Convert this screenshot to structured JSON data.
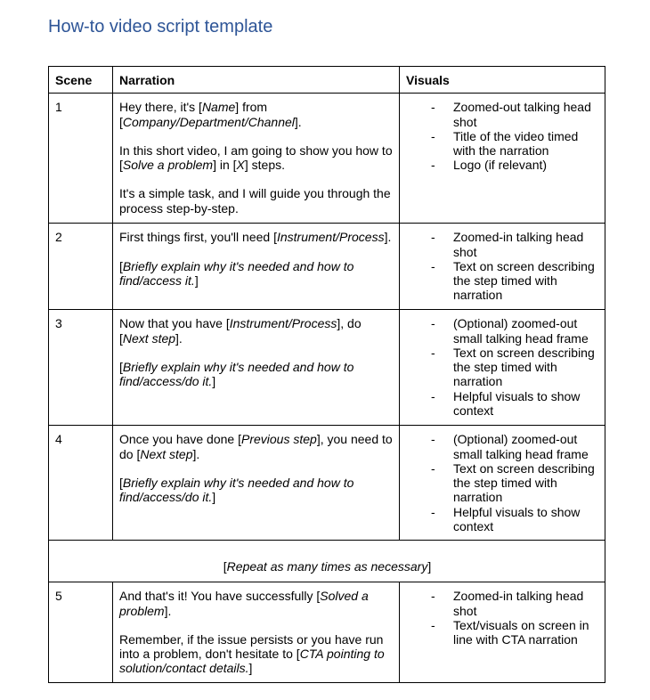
{
  "title": "How-to video script template",
  "headers": {
    "scene": "Scene",
    "narration": "Narration",
    "visuals": "Visuals"
  },
  "rows": [
    {
      "scene": "1",
      "narration": [
        [
          {
            "t": "Hey there, it's ["
          },
          {
            "t": "Name",
            "i": true
          },
          {
            "t": "] from ["
          },
          {
            "t": "Company/Department/Channel",
            "i": true
          },
          {
            "t": "]."
          }
        ],
        [
          {
            "t": "In this short video, I am going to show you how to ["
          },
          {
            "t": "Solve a problem",
            "i": true
          },
          {
            "t": "] in ["
          },
          {
            "t": "X",
            "i": true
          },
          {
            "t": "] steps."
          }
        ],
        [
          {
            "t": "It's a simple task, and I will guide you through the process step-by-step."
          }
        ]
      ],
      "visuals": [
        "Zoomed-out talking head shot",
        "Title of the video timed with the narration",
        "Logo (if relevant)"
      ]
    },
    {
      "scene": "2",
      "narration": [
        [
          {
            "t": "First things first, you'll need ["
          },
          {
            "t": "Instrument/Process",
            "i": true
          },
          {
            "t": "]."
          }
        ],
        [
          {
            "t": "["
          },
          {
            "t": "Briefly explain why it's needed and how to find/access it.",
            "i": true
          },
          {
            "t": "]"
          }
        ]
      ],
      "visuals": [
        "Zoomed-in talking head shot",
        "Text on screen describing the step timed with narration"
      ]
    },
    {
      "scene": "3",
      "narration": [
        [
          {
            "t": "Now that you have ["
          },
          {
            "t": "Instrument/Process",
            "i": true
          },
          {
            "t": "], do ["
          },
          {
            "t": "Next step",
            "i": true
          },
          {
            "t": "]."
          }
        ],
        [
          {
            "t": "["
          },
          {
            "t": "Briefly explain why it's needed and how to find/access/do it.",
            "i": true
          },
          {
            "t": "]"
          }
        ]
      ],
      "visuals": [
        "(Optional) zoomed-out small talking head frame",
        "Text on screen describing the step timed with narration",
        "Helpful visuals to show context"
      ]
    },
    {
      "scene": "4",
      "narration": [
        [
          {
            "t": "Once you have done ["
          },
          {
            "t": "Previous step",
            "i": true
          },
          {
            "t": "], you need to do ["
          },
          {
            "t": "Next step",
            "i": true
          },
          {
            "t": "]."
          }
        ],
        [
          {
            "t": "["
          },
          {
            "t": "Briefly explain why it's needed and how to find/access/do it.",
            "i": true
          },
          {
            "t": "]"
          }
        ]
      ],
      "visuals": [
        "(Optional) zoomed-out small talking head frame",
        "Text on screen describing the step timed with narration",
        "Helpful visuals to show context"
      ]
    }
  ],
  "repeat": [
    {
      "t": "["
    },
    {
      "t": "Repeat as many times as necessary",
      "i": true
    },
    {
      "t": "]"
    }
  ],
  "last_row": {
    "scene": "5",
    "narration": [
      [
        {
          "t": "And that's it! You have successfully ["
        },
        {
          "t": "Solved a problem",
          "i": true
        },
        {
          "t": "]."
        }
      ],
      [
        {
          "t": "Remember, if the issue persists or you have run into a problem, don't hesitate to ["
        },
        {
          "t": "CTA pointing to solution/contact details.",
          "i": true
        },
        {
          "t": "]"
        }
      ]
    ],
    "visuals": [
      "Zoomed-in talking head shot",
      "Text/visuals on screen in line with CTA narration"
    ]
  }
}
